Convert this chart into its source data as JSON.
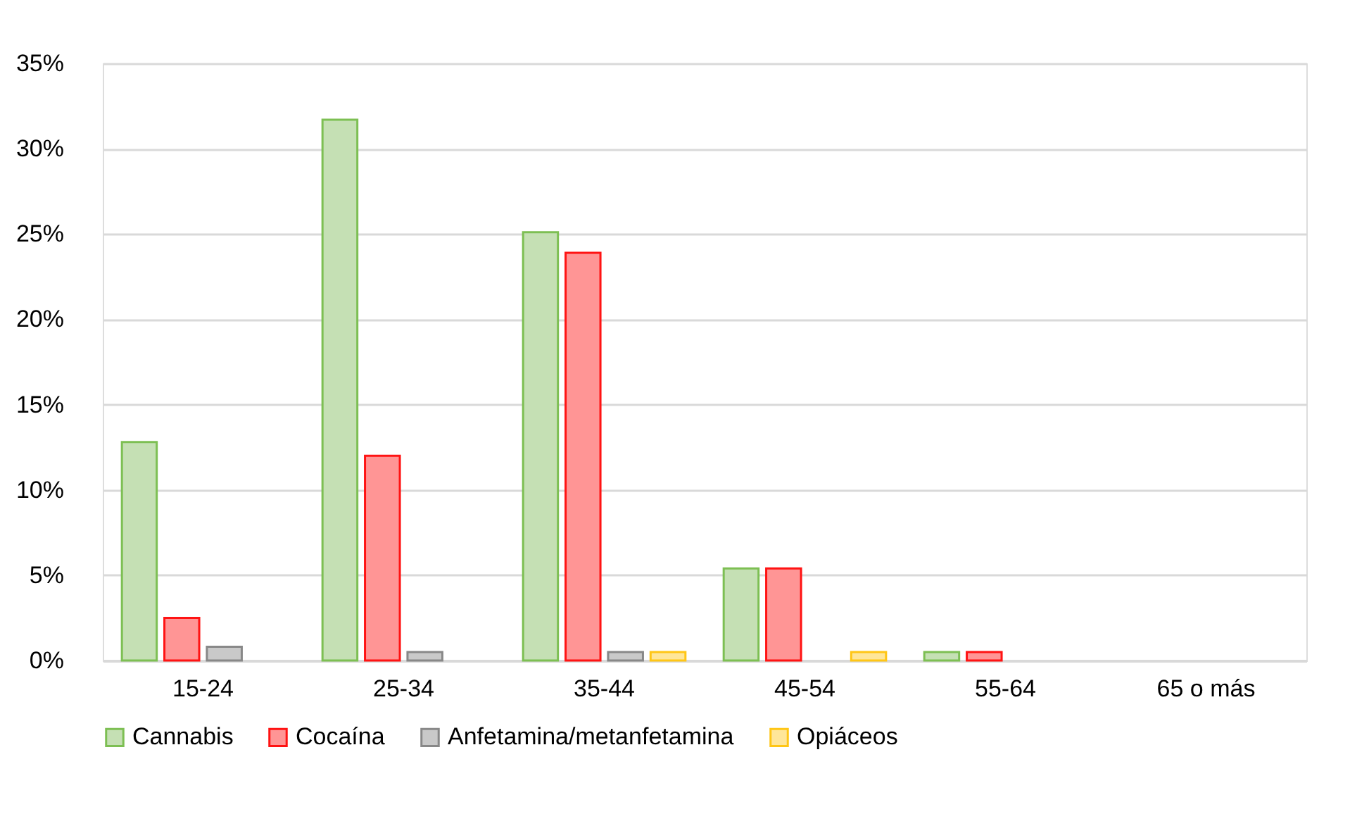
{
  "chart_data": {
    "type": "bar",
    "categories": [
      "15-24",
      "25-34",
      "35-44",
      "45-54",
      "55-64",
      "65 o más"
    ],
    "series": [
      {
        "name": "Cannabis",
        "color": "#c5e0b4",
        "values": [
          12.8,
          31.7,
          25.1,
          5.4,
          0.5,
          0
        ]
      },
      {
        "name": "Cocaína",
        "color": "#ff9595",
        "values": [
          2.5,
          12.0,
          23.9,
          5.4,
          0.5,
          0
        ]
      },
      {
        "name": "Anfetamina/metanfetamina",
        "color": "#c9c9c9",
        "values": [
          0.8,
          0.5,
          0.5,
          0,
          0,
          0
        ]
      },
      {
        "name": "Opiáceos",
        "color": "#ffe699",
        "values": [
          0,
          0,
          0.5,
          0.5,
          0,
          0
        ]
      }
    ],
    "ylim": [
      0,
      35
    ],
    "yticks": [
      {
        "value": 0,
        "label": "0%"
      },
      {
        "value": 5,
        "label": "5%"
      },
      {
        "value": 10,
        "label": "10%"
      },
      {
        "value": 15,
        "label": "15%"
      },
      {
        "value": 20,
        "label": "20%"
      },
      {
        "value": 25,
        "label": "25%"
      },
      {
        "value": 30,
        "label": "30%"
      },
      {
        "value": 35,
        "label": "35%"
      }
    ],
    "grid": "y",
    "legend": "bottom"
  }
}
